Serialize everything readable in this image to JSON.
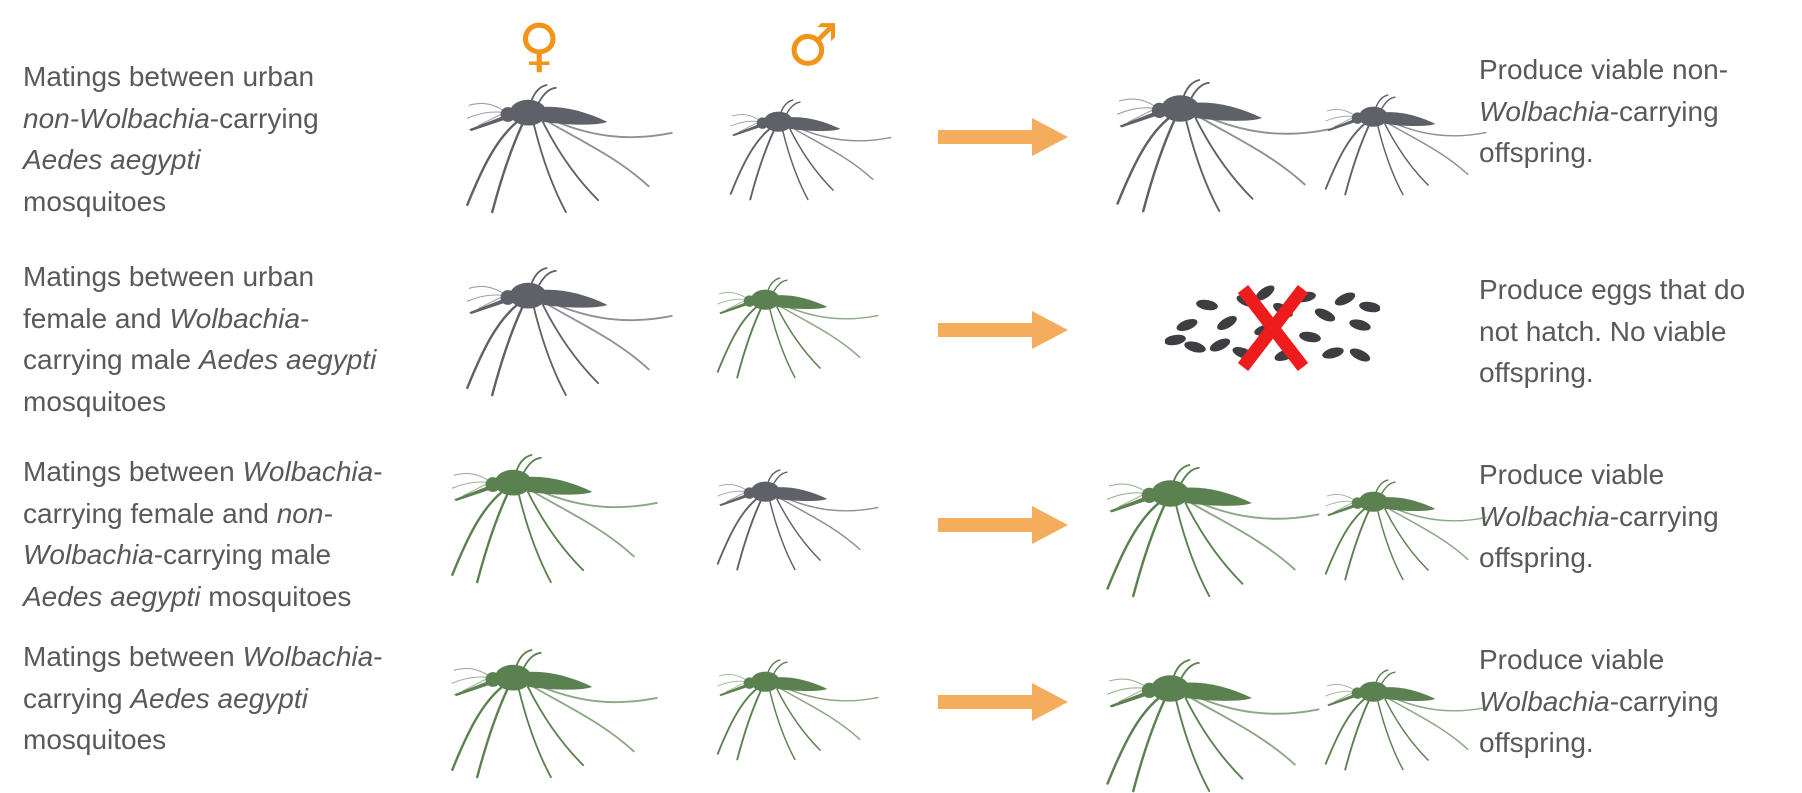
{
  "colors": {
    "urban_mosquito": "#5f6168",
    "wolbachia_mosquito": "#5b8151",
    "arrow": "#f3ad5c",
    "symbol": "#f2931a",
    "cross": "#ee1c1c",
    "egg": "#3d3d42",
    "text": "#595959"
  },
  "symbols": {
    "female": "♀",
    "male": "♂"
  },
  "rows": [
    {
      "left": [
        {
          "t": "Matings between urban",
          "i": false,
          "br": true
        },
        {
          "t": "non-Wolbachia",
          "i": true
        },
        {
          "t": "-carrying",
          "i": false,
          "br": true
        },
        {
          "t": "Aedes aegypti",
          "i": true,
          "br": true
        },
        {
          "t": "mosquitoes",
          "i": false
        }
      ],
      "female": "urban",
      "male": "urban",
      "result": "urban",
      "right": [
        {
          "t": "Produce viable non-",
          "i": false,
          "br": true
        },
        {
          "t": "Wolbachia",
          "i": true
        },
        {
          "t": "-carrying",
          "i": false,
          "br": true
        },
        {
          "t": "offspring.",
          "i": false
        }
      ]
    },
    {
      "left": [
        {
          "t": "Matings between urban",
          "i": false,
          "br": true
        },
        {
          "t": "female and ",
          "i": false
        },
        {
          "t": "Wolbachia",
          "i": true
        },
        {
          "t": "-",
          "i": false,
          "br": true
        },
        {
          "t": "carrying male ",
          "i": false
        },
        {
          "t": "Aedes aegypti",
          "i": true,
          "br": true
        },
        {
          "t": "mosquitoes",
          "i": false
        }
      ],
      "female": "urban",
      "male": "wolbachia",
      "result": "eggs",
      "right": [
        {
          "t": "Produce eggs that do",
          "i": false,
          "br": true
        },
        {
          "t": "not hatch. No viable",
          "i": false,
          "br": true
        },
        {
          "t": "offspring.",
          "i": false
        }
      ]
    },
    {
      "left": [
        {
          "t": "Matings between ",
          "i": false
        },
        {
          "t": "Wolbachia",
          "i": true
        },
        {
          "t": "-",
          "i": false,
          "br": true
        },
        {
          "t": "carrying female and ",
          "i": false
        },
        {
          "t": "non-",
          "i": true,
          "br": true
        },
        {
          "t": "Wolbachia",
          "i": true
        },
        {
          "t": "-carrying male",
          "i": false,
          "br": true
        },
        {
          "t": "Aedes aegypti",
          "i": true
        },
        {
          "t": " mosquitoes",
          "i": false
        }
      ],
      "female": "wolbachia",
      "male": "urban",
      "result": "wolbachia",
      "right": [
        {
          "t": "Produce viable",
          "i": false,
          "br": true
        },
        {
          "t": "Wolbachia",
          "i": true
        },
        {
          "t": "-carrying",
          "i": false,
          "br": true
        },
        {
          "t": "offspring.",
          "i": false
        }
      ]
    },
    {
      "left": [
        {
          "t": "Matings between ",
          "i": false
        },
        {
          "t": "Wolbachia",
          "i": true
        },
        {
          "t": "-",
          "i": false,
          "br": true
        },
        {
          "t": "carrying ",
          "i": false
        },
        {
          "t": "Aedes aegypti",
          "i": true,
          "br": true
        },
        {
          "t": "mosquitoes",
          "i": false
        }
      ],
      "female": "wolbachia",
      "male": "wolbachia",
      "result": "wolbachia",
      "right": [
        {
          "t": "Produce viable",
          "i": false,
          "br": true
        },
        {
          "t": "Wolbachia",
          "i": true
        },
        {
          "t": "-carrying",
          "i": false,
          "br": true
        },
        {
          "t": "offspring.",
          "i": false
        }
      ]
    }
  ]
}
